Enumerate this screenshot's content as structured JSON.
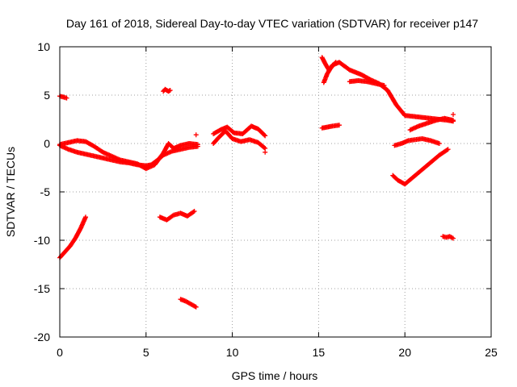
{
  "chart_data": {
    "type": "scatter",
    "title": "Day 161 of 2018, Sidereal Day-to-day VTEC variation (SDTVAR) for receiver p147",
    "xlabel": "GPS time / hours",
    "ylabel": "SDTVAR / TECUs",
    "xlim": [
      0,
      25
    ],
    "ylim": [
      -20,
      10
    ],
    "xticks": [
      0,
      5,
      10,
      15,
      20,
      25
    ],
    "yticks": [
      -20,
      -15,
      -10,
      -5,
      0,
      5,
      10
    ],
    "grid": true,
    "marker": "+",
    "color": "#ff0000",
    "series": [
      {
        "x": [
          0.0,
          0.3,
          0.6,
          0.9,
          1.2,
          1.5
        ],
        "y": [
          -11.8,
          -11.2,
          -10.6,
          -9.8,
          -8.8,
          -7.6
        ]
      },
      {
        "x": [
          0.0,
          0.2,
          0.4
        ],
        "y": [
          4.9,
          4.8,
          4.7
        ]
      },
      {
        "x": [
          0.0,
          0.5,
          1.0,
          1.5,
          2.0,
          2.5,
          3.0,
          3.5,
          4.0,
          4.5,
          5.0,
          5.3,
          5.6,
          6.0,
          6.5,
          7.0,
          7.5,
          8.0
        ],
        "y": [
          -0.2,
          -0.6,
          -0.9,
          -1.1,
          -1.3,
          -1.5,
          -1.7,
          -1.9,
          -2.0,
          -2.2,
          -2.3,
          -2.2,
          -1.8,
          -1.2,
          -0.8,
          -0.6,
          -0.4,
          -0.3
        ]
      },
      {
        "x": [
          0.0,
          0.5,
          1.0,
          1.5,
          2.0,
          2.5,
          3.0,
          3.5,
          4.0,
          4.5,
          5.0,
          5.5,
          6.0,
          6.3,
          6.6,
          7.0,
          7.5,
          8.0
        ],
        "y": [
          -0.1,
          0.1,
          0.3,
          0.2,
          -0.3,
          -0.9,
          -1.3,
          -1.7,
          -1.9,
          -2.1,
          -2.6,
          -2.2,
          -1.0,
          0.0,
          -0.5,
          -0.2,
          0.0,
          -0.1
        ]
      },
      {
        "x": [
          6.0,
          6.1,
          6.2,
          6.3,
          6.4
        ],
        "y": [
          5.4,
          5.6,
          5.5,
          5.4,
          5.5
        ]
      },
      {
        "x": [
          5.8,
          6.2,
          6.6,
          7.0,
          7.4,
          7.8
        ],
        "y": [
          -7.6,
          -7.9,
          -7.4,
          -7.2,
          -7.5,
          -7.0
        ]
      },
      {
        "x": [
          7.0,
          7.3,
          7.6,
          7.9
        ],
        "y": [
          -16.1,
          -16.3,
          -16.6,
          -16.9
        ]
      },
      {
        "x": [
          7.9
        ],
        "y": [
          0.9
        ]
      },
      {
        "x": [
          8.9,
          9.2,
          9.6,
          10.0,
          10.5,
          11.0,
          11.5,
          11.9
        ],
        "y": [
          0.0,
          0.6,
          1.3,
          0.5,
          0.2,
          0.4,
          0.1,
          -0.5
        ]
      },
      {
        "x": [
          8.9,
          9.3,
          9.7,
          10.1,
          10.6,
          11.1,
          11.5,
          11.9
        ],
        "y": [
          1.0,
          1.4,
          1.7,
          1.1,
          1.0,
          1.8,
          1.5,
          0.8
        ]
      },
      {
        "x": [
          11.9
        ],
        "y": [
          -0.9
        ]
      },
      {
        "x": [
          15.2,
          15.4,
          15.6,
          15.8,
          16.0
        ],
        "y": [
          8.9,
          8.2,
          7.6,
          8.0,
          8.4
        ]
      },
      {
        "x": [
          15.3,
          15.5,
          15.8,
          16.2,
          16.8,
          17.5,
          18.0,
          18.5,
          19.0,
          19.5,
          20.0,
          20.5,
          21.0,
          21.5,
          22.0,
          22.5,
          22.8
        ],
        "y": [
          6.3,
          7.2,
          8.1,
          8.4,
          7.6,
          7.1,
          6.6,
          6.2,
          5.5,
          4.0,
          2.9,
          2.8,
          2.7,
          2.6,
          2.5,
          2.4,
          2.3
        ]
      },
      {
        "x": [
          16.8,
          17.3,
          17.8,
          18.3,
          18.8
        ],
        "y": [
          6.4,
          6.5,
          6.4,
          6.2,
          6.0
        ]
      },
      {
        "x": [
          15.2,
          15.5,
          15.8,
          16.2
        ],
        "y": [
          1.6,
          1.7,
          1.8,
          1.9
        ]
      },
      {
        "x": [
          19.4,
          19.8,
          20.2,
          20.6,
          21.0,
          21.5,
          22.0
        ],
        "y": [
          -0.2,
          0.0,
          0.3,
          0.4,
          0.5,
          0.3,
          0.0
        ]
      },
      {
        "x": [
          20.3,
          20.8,
          21.3,
          21.8,
          22.3,
          22.8
        ],
        "y": [
          1.4,
          1.8,
          2.1,
          2.4,
          2.6,
          2.4
        ]
      },
      {
        "x": [
          19.3,
          19.6,
          20.0,
          20.4,
          20.8,
          21.2,
          21.6,
          22.0,
          22.5
        ],
        "y": [
          -3.3,
          -3.8,
          -4.2,
          -3.6,
          -3.0,
          -2.4,
          -1.8,
          -1.2,
          -0.6
        ]
      },
      {
        "x": [
          22.2,
          22.4,
          22.6,
          22.8
        ],
        "y": [
          -9.6,
          -9.7,
          -9.6,
          -9.8
        ]
      },
      {
        "x": [
          22.8
        ],
        "y": [
          3.0
        ]
      }
    ]
  }
}
